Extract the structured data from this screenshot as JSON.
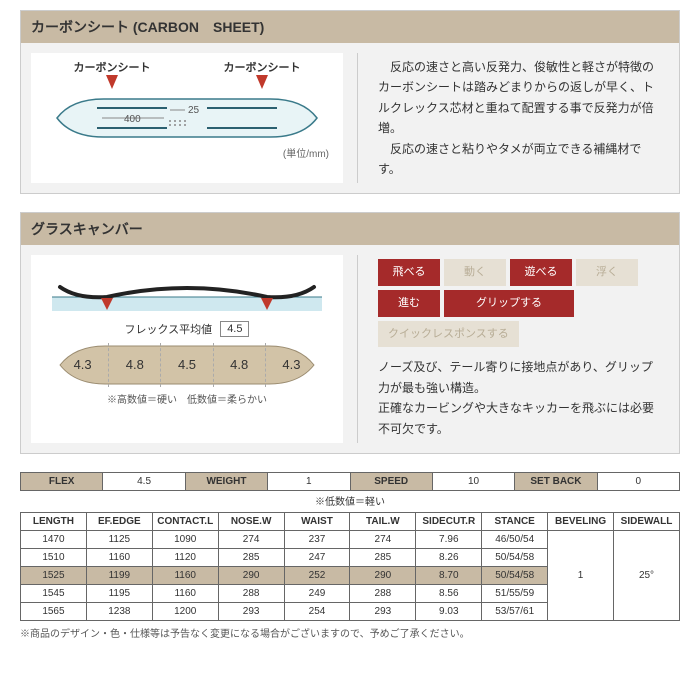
{
  "carbon": {
    "title": "カーボンシート (CARBON　SHEET)",
    "label_left": "カーボンシート",
    "label_right": "カーボンシート",
    "dim1": "400",
    "dim2": "25",
    "unit": "(単位/mm)",
    "desc": "　反応の速さと高い反発力、俊敏性と軽さが特徴のカーボンシートは踏みどまりからの返しが早く、トルクレックス芯材と重ねて配置する事で反発力が倍増。\n　反応の速さと粘りやタメが両立できる補縄材です。"
  },
  "camber": {
    "title": "グラスキャンバー",
    "flex_label": "フレックス平均値",
    "flex_avg": "4.5",
    "flex_values": [
      "4.3",
      "4.8",
      "4.5",
      "4.8",
      "4.3"
    ],
    "flex_note": "※高数値＝硬い　低数値＝柔らかい",
    "tags": [
      {
        "label": "飛べる",
        "on": true
      },
      {
        "label": "動く",
        "on": false
      },
      {
        "label": "遊べる",
        "on": true
      },
      {
        "label": "浮く",
        "on": false
      },
      {
        "label": "進む",
        "on": true
      },
      {
        "label": "グリップする",
        "on": true,
        "wide": true
      },
      {
        "label": "クイックレスポンスする",
        "on": false,
        "wide": true
      }
    ],
    "desc": "ノーズ及び、テール寄りに接地点があり、グリップ力が最も強い構造。\n正確なカービングや大きなキッカーを飛ぶには必要不可欠です。"
  },
  "specs_top": {
    "headers": [
      "FLEX",
      "WEIGHT",
      "SPEED",
      "SET BACK"
    ],
    "values": [
      "4.5",
      "1",
      "10",
      "0"
    ],
    "note": "※低数値＝軽い"
  },
  "specs": {
    "headers": [
      "LENGTH",
      "EF.EDGE",
      "CONTACT.L",
      "NOSE.W",
      "WAIST",
      "TAIL.W",
      "SIDECUT.R",
      "STANCE",
      "BEVELING",
      "SIDEWALL"
    ],
    "rows": [
      [
        "1470",
        "1125",
        "1090",
        "274",
        "237",
        "274",
        "7.96",
        "46/50/54"
      ],
      [
        "1510",
        "1160",
        "1120",
        "285",
        "247",
        "285",
        "8.26",
        "50/54/58"
      ],
      [
        "1525",
        "1199",
        "1160",
        "290",
        "252",
        "290",
        "8.70",
        "50/54/58"
      ],
      [
        "1545",
        "1195",
        "1160",
        "288",
        "249",
        "288",
        "8.56",
        "51/55/59"
      ],
      [
        "1565",
        "1238",
        "1200",
        "293",
        "254",
        "293",
        "9.03",
        "53/57/61"
      ]
    ],
    "beveling": "1",
    "sidewall": "25°",
    "highlight_row": 2
  },
  "footer": "※商品のデザイン・色・仕様等は予告なく変更になる場合がございますので、予めご了承ください。",
  "colors": {
    "accent": "#c8baa4",
    "red": "#a52a2a"
  }
}
